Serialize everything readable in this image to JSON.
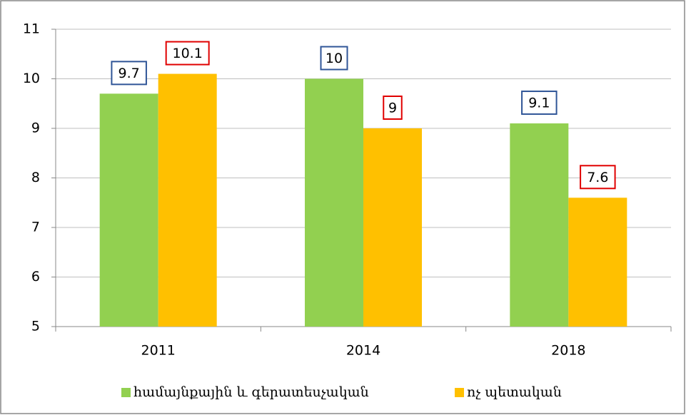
{
  "chart_data": {
    "type": "bar",
    "categories": [
      "2011",
      "2014",
      "2018"
    ],
    "series": [
      {
        "name": "համայնքային և գերատեսչական",
        "color": "#92d050",
        "label_border_color": "#2f5597",
        "values": [
          9.7,
          10,
          9.1
        ]
      },
      {
        "name": "ոչ պետական",
        "color": "#ffc000",
        "label_border_color": "#e00000",
        "values": [
          10.1,
          9,
          7.6
        ]
      }
    ],
    "ylim": [
      5,
      11
    ],
    "yticks": [
      5,
      6,
      7,
      8,
      9,
      10,
      11
    ],
    "grid": true,
    "legend": "bottom"
  }
}
